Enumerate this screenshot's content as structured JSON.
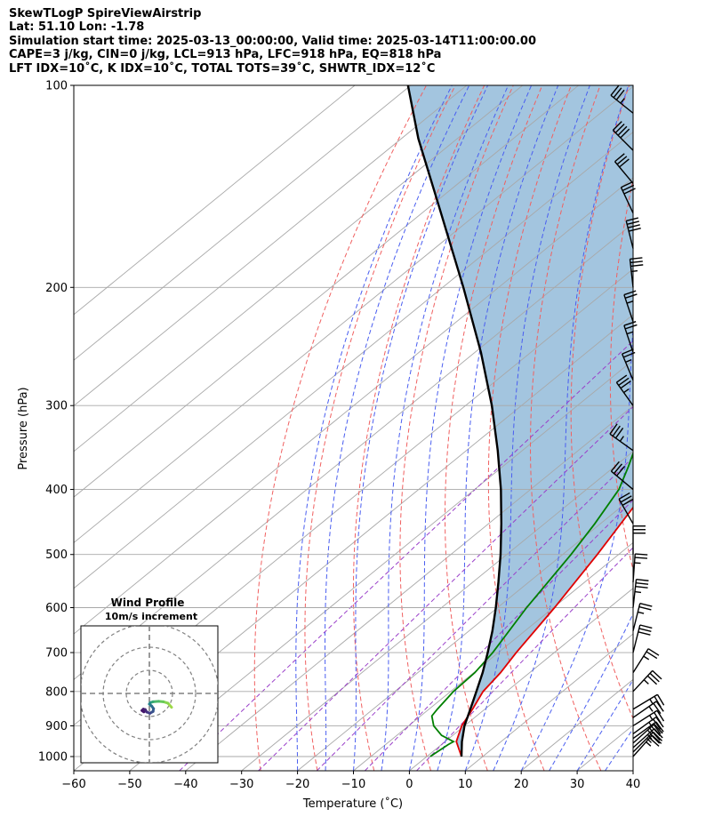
{
  "header": {
    "line1": "SkewTLogP SpireViewAirstrip",
    "line2": "Lat: 51.10   Lon: -1.78",
    "line3": "Simulation start time: 2025-03-13_00:00:00, Valid time: 2025-03-14T11:00:00.00",
    "line4": "CAPE=3 j/kg, CIN=0 j/kg, LCL=913 hPa, LFC=918 hPa, EQ=818 hPa",
    "line5": "LFT IDX=10˚C, K IDX=10˚C, TOTAL TOTS=39˚C, SHWTR_IDX=12˚C"
  },
  "chart_data": {
    "type": "line",
    "subtype": "skew-t log-p",
    "xlabel": "Temperature (˚C)",
    "ylabel": "Pressure (hPa)",
    "xlim": [
      -60,
      40
    ],
    "ylim": [
      1050,
      100
    ],
    "y_scale": "log",
    "x_ticks": [
      -60,
      -50,
      -40,
      -30,
      -20,
      -10,
      0,
      10,
      20,
      30,
      40
    ],
    "x_tick_labels": [
      "−60",
      "−50",
      "−40",
      "−30",
      "−20",
      "−10",
      "0",
      "10",
      "20",
      "30",
      "40"
    ],
    "y_ticks": [
      1000,
      900,
      800,
      700,
      600,
      500,
      400,
      300,
      200,
      100
    ],
    "y_tick_labels": [
      "1000",
      "900",
      "800",
      "700",
      "600",
      "500",
      "400",
      "300",
      "200",
      "100"
    ],
    "grid": true,
    "series": [
      {
        "role": "temperature",
        "color": "#e00000",
        "points": [
          [
            1000,
            6.2
          ],
          [
            950,
            2.0
          ],
          [
            900,
            -0.5
          ],
          [
            850,
            -2.2
          ],
          [
            800,
            -4.2
          ],
          [
            750,
            -5.2
          ],
          [
            700,
            -6.8
          ],
          [
            600,
            -9.8
          ],
          [
            500,
            -13.8
          ],
          [
            400,
            -19.2
          ],
          [
            350,
            -23.8
          ],
          [
            300,
            -30.5
          ],
          [
            270,
            -36.0
          ],
          [
            250,
            -42.0
          ],
          [
            230,
            -46.5
          ],
          [
            200,
            -53.0
          ],
          [
            170,
            -58.5
          ],
          [
            150,
            -61.0
          ],
          [
            130,
            -63.5
          ],
          [
            120,
            -65.5
          ],
          [
            110,
            -67.5
          ],
          [
            100,
            -69.2
          ]
        ]
      },
      {
        "role": "dewpoint",
        "color": "#008000",
        "points": [
          [
            1000,
            0.6
          ],
          [
            960,
            1.2
          ],
          [
            950,
            1.5
          ],
          [
            930,
            -2.0
          ],
          [
            900,
            -5.5
          ],
          [
            870,
            -8.0
          ],
          [
            850,
            -8.5
          ],
          [
            800,
            -9.5
          ],
          [
            750,
            -9.8
          ],
          [
            700,
            -11.0
          ],
          [
            600,
            -14.8
          ],
          [
            500,
            -18.5
          ],
          [
            450,
            -21.0
          ],
          [
            400,
            -24.2
          ],
          [
            370,
            -27.5
          ],
          [
            350,
            -30.0
          ],
          [
            330,
            -33.0
          ],
          [
            300,
            -37.0
          ],
          [
            280,
            -39.5
          ],
          [
            250,
            -44.0
          ],
          [
            200,
            -52.0
          ],
          [
            170,
            -58.0
          ],
          [
            150,
            -63.5
          ],
          [
            130,
            -67.5
          ],
          [
            120,
            -70.5
          ],
          [
            110,
            -74.0
          ],
          [
            100,
            -78.5
          ]
        ]
      },
      {
        "role": "parcel",
        "color": "#000000",
        "points": [
          [
            1000,
            6.2
          ],
          [
            950,
            3.0
          ],
          [
            913,
            0.8
          ],
          [
            900,
            0.0
          ],
          [
            850,
            -2.6
          ],
          [
            800,
            -5.4
          ],
          [
            750,
            -8.4
          ],
          [
            700,
            -11.9
          ],
          [
            650,
            -15.8
          ],
          [
            600,
            -20.3
          ],
          [
            550,
            -25.4
          ],
          [
            500,
            -31.1
          ],
          [
            450,
            -37.7
          ],
          [
            400,
            -45.3
          ],
          [
            350,
            -54.4
          ],
          [
            300,
            -65.3
          ],
          [
            250,
            -78.9
          ],
          [
            200,
            -96.3
          ],
          [
            150,
            -119.2
          ],
          [
            120,
            -137.0
          ],
          [
            100,
            -150.5
          ]
        ]
      }
    ],
    "hodograph": {
      "title": "Wind Profile",
      "subtitle": "10m/s increment",
      "ring_step_ms": 10,
      "points": [
        [
          9.6,
          6.0
        ],
        [
          8.0,
          4.2
        ],
        [
          6.0,
          3.6
        ],
        [
          4.0,
          3.4
        ],
        [
          1.6,
          3.6
        ],
        [
          0.4,
          4.0
        ],
        [
          0.0,
          4.6
        ],
        [
          1.0,
          5.5
        ],
        [
          1.8,
          6.6
        ],
        [
          1.6,
          7.8
        ],
        [
          0.2,
          8.6
        ],
        [
          -1.2,
          8.0
        ],
        [
          -1.8,
          7.0
        ],
        [
          -2.6,
          6.8
        ],
        [
          -3.2,
          7.4
        ],
        [
          -2.4,
          8.0
        ]
      ]
    },
    "wind_barbs": [
      {
        "p": 1000,
        "u": 8,
        "v": 9
      },
      {
        "p": 985,
        "u": 9,
        "v": 9
      },
      {
        "p": 970,
        "u": 10,
        "v": 9
      },
      {
        "p": 955,
        "u": 10,
        "v": 9
      },
      {
        "p": 940,
        "u": 11,
        "v": 8
      },
      {
        "p": 925,
        "u": 11,
        "v": 8
      },
      {
        "p": 900,
        "u": 11,
        "v": 7
      },
      {
        "p": 875,
        "u": 10,
        "v": 7
      },
      {
        "p": 850,
        "u": 10,
        "v": 6
      },
      {
        "p": 800,
        "u": 13,
        "v": 14
      },
      {
        "p": 750,
        "u": 7,
        "v": 11
      },
      {
        "p": 700,
        "u": 4,
        "v": 16
      },
      {
        "p": 650,
        "u": 3,
        "v": 12
      },
      {
        "p": 600,
        "u": 2,
        "v": 18
      },
      {
        "p": 550,
        "u": 1,
        "v": 14
      },
      {
        "p": 500,
        "u": 0,
        "v": 16
      },
      {
        "p": 450,
        "u": -8,
        "v": 14
      },
      {
        "p": 400,
        "u": -12,
        "v": 10
      },
      {
        "p": 350,
        "u": -14,
        "v": 10
      },
      {
        "p": 300,
        "u": -10,
        "v": 14
      },
      {
        "p": 275,
        "u": -5,
        "v": 12
      },
      {
        "p": 250,
        "u": -4,
        "v": 12
      },
      {
        "p": 225,
        "u": -4,
        "v": 12
      },
      {
        "p": 200,
        "u": -2,
        "v": 18
      },
      {
        "p": 175,
        "u": -5,
        "v": 20
      },
      {
        "p": 155,
        "u": -7,
        "v": 15
      },
      {
        "p": 140,
        "u": -10,
        "v": 12
      },
      {
        "p": 125,
        "u": -15,
        "v": 15
      },
      {
        "p": 110,
        "u": -15,
        "v": 12
      }
    ]
  },
  "colors": {
    "temperature": "#e00000",
    "dewpoint": "#008000",
    "parcel": "#000000",
    "cape_fill": "#7faed3",
    "dry_adiabat": "#f06060",
    "moist_adiabat": "#4a5ef0",
    "isotherm": "#a8a8a8",
    "mixing_ratio": "#9a3fc9"
  }
}
